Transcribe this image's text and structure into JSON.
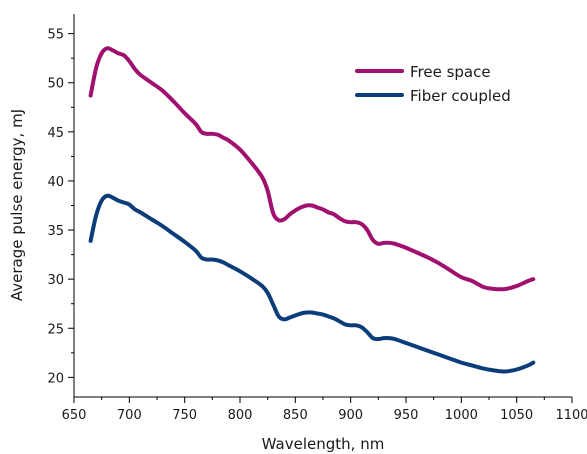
{
  "chart_data": {
    "type": "line",
    "xlabel": "Wavelength, nm",
    "ylabel": "Average pulse energy, mJ",
    "xlim": [
      650,
      1100
    ],
    "ylim": [
      18,
      57
    ],
    "xticks": [
      650,
      700,
      750,
      800,
      850,
      900,
      950,
      1000,
      1050,
      1100
    ],
    "yticks": [
      20,
      25,
      30,
      35,
      40,
      45,
      50,
      55
    ],
    "grid": false,
    "legend_position": "top-right",
    "series": [
      {
        "name": "Free space",
        "color": "#a0106e",
        "x": [
          665,
          670,
          675,
          680,
          685,
          690,
          695,
          700,
          705,
          710,
          720,
          730,
          740,
          750,
          760,
          765,
          770,
          775,
          780,
          785,
          790,
          800,
          810,
          820,
          825,
          830,
          835,
          840,
          845,
          850,
          855,
          860,
          865,
          870,
          875,
          880,
          885,
          890,
          895,
          900,
          905,
          910,
          915,
          920,
          925,
          930,
          935,
          940,
          945,
          950,
          960,
          970,
          980,
          990,
          1000,
          1010,
          1020,
          1030,
          1040,
          1050,
          1060,
          1065
        ],
        "y": [
          48.7,
          51.5,
          53.0,
          53.5,
          53.3,
          53.0,
          52.8,
          52.2,
          51.4,
          50.8,
          50.0,
          49.2,
          48.1,
          46.9,
          45.8,
          45.0,
          44.8,
          44.8,
          44.7,
          44.4,
          44.1,
          43.2,
          41.9,
          40.4,
          39.0,
          36.7,
          36.0,
          36.1,
          36.6,
          37.0,
          37.3,
          37.5,
          37.5,
          37.3,
          37.1,
          36.8,
          36.6,
          36.2,
          35.9,
          35.8,
          35.8,
          35.6,
          35.0,
          34.0,
          33.6,
          33.7,
          33.7,
          33.6,
          33.4,
          33.2,
          32.7,
          32.2,
          31.6,
          30.9,
          30.2,
          29.8,
          29.2,
          29.0,
          29.0,
          29.3,
          29.8,
          30.0
        ]
      },
      {
        "name": "Fiber coupled",
        "color": "#0a3d7a",
        "x": [
          665,
          670,
          675,
          680,
          685,
          690,
          695,
          700,
          705,
          710,
          720,
          730,
          740,
          750,
          760,
          765,
          770,
          775,
          780,
          785,
          790,
          800,
          810,
          820,
          825,
          830,
          835,
          840,
          845,
          850,
          855,
          860,
          865,
          870,
          875,
          880,
          885,
          890,
          895,
          900,
          905,
          910,
          915,
          920,
          925,
          930,
          935,
          940,
          945,
          950,
          960,
          970,
          980,
          990,
          1000,
          1010,
          1020,
          1030,
          1040,
          1050,
          1060,
          1065
        ],
        "y": [
          33.9,
          36.5,
          38.0,
          38.5,
          38.3,
          38.0,
          37.8,
          37.6,
          37.1,
          36.8,
          36.1,
          35.4,
          34.6,
          33.8,
          32.9,
          32.2,
          32.0,
          32.0,
          31.9,
          31.7,
          31.4,
          30.8,
          30.1,
          29.3,
          28.6,
          27.4,
          26.2,
          25.9,
          26.1,
          26.3,
          26.5,
          26.6,
          26.6,
          26.5,
          26.4,
          26.2,
          26.0,
          25.7,
          25.4,
          25.3,
          25.3,
          25.1,
          24.6,
          24.0,
          23.9,
          24.0,
          24.0,
          23.9,
          23.7,
          23.5,
          23.1,
          22.7,
          22.3,
          21.9,
          21.5,
          21.2,
          20.9,
          20.7,
          20.6,
          20.8,
          21.2,
          21.5
        ]
      }
    ]
  }
}
